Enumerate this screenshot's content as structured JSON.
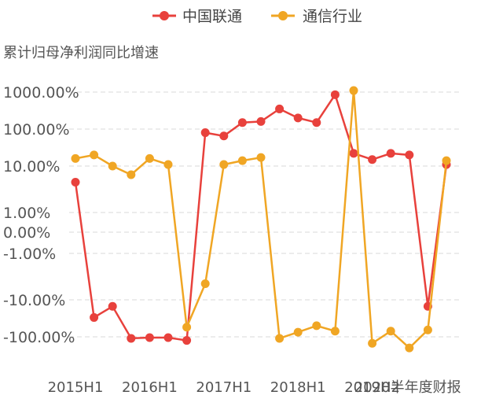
{
  "chart_data": {
    "type": "line",
    "ylabel": "累计归母净利润同比增速",
    "y_scale": "symmetric-log (percent)",
    "y_ticks": [
      "1000.00%",
      "100.00%",
      "10.00%",
      "1.00%",
      "0.00%",
      "-1.00%",
      "-10.00%",
      "-100.00%"
    ],
    "y_tick_values": [
      1000,
      100,
      10,
      1,
      0,
      -1,
      -10,
      -100
    ],
    "x_tick_labels": [
      "2015H1",
      "2016H1",
      "2017H1",
      "2018H1",
      "2019H2",
      "2020半年度财报"
    ],
    "x_tick_index": [
      0,
      4,
      8,
      12,
      16,
      18
    ],
    "grid": true,
    "legend_position": "top-center",
    "series": [
      {
        "name": "中国联通",
        "color": "#e8413c",
        "values": [
          4.5,
          -30,
          -15,
          -110,
          -105,
          -105,
          -125,
          80,
          65,
          150,
          160,
          350,
          200,
          150,
          850,
          22,
          15,
          22,
          20,
          -15,
          11
        ]
      },
      {
        "name": "通信行业",
        "color": "#f0a624",
        "values": [
          16,
          20,
          10,
          6.5,
          16,
          11,
          -55,
          -4.5,
          11,
          14,
          17,
          -110,
          -75,
          -50,
          -70,
          1100,
          -150,
          -70,
          -200,
          -65,
          14
        ]
      }
    ]
  }
}
